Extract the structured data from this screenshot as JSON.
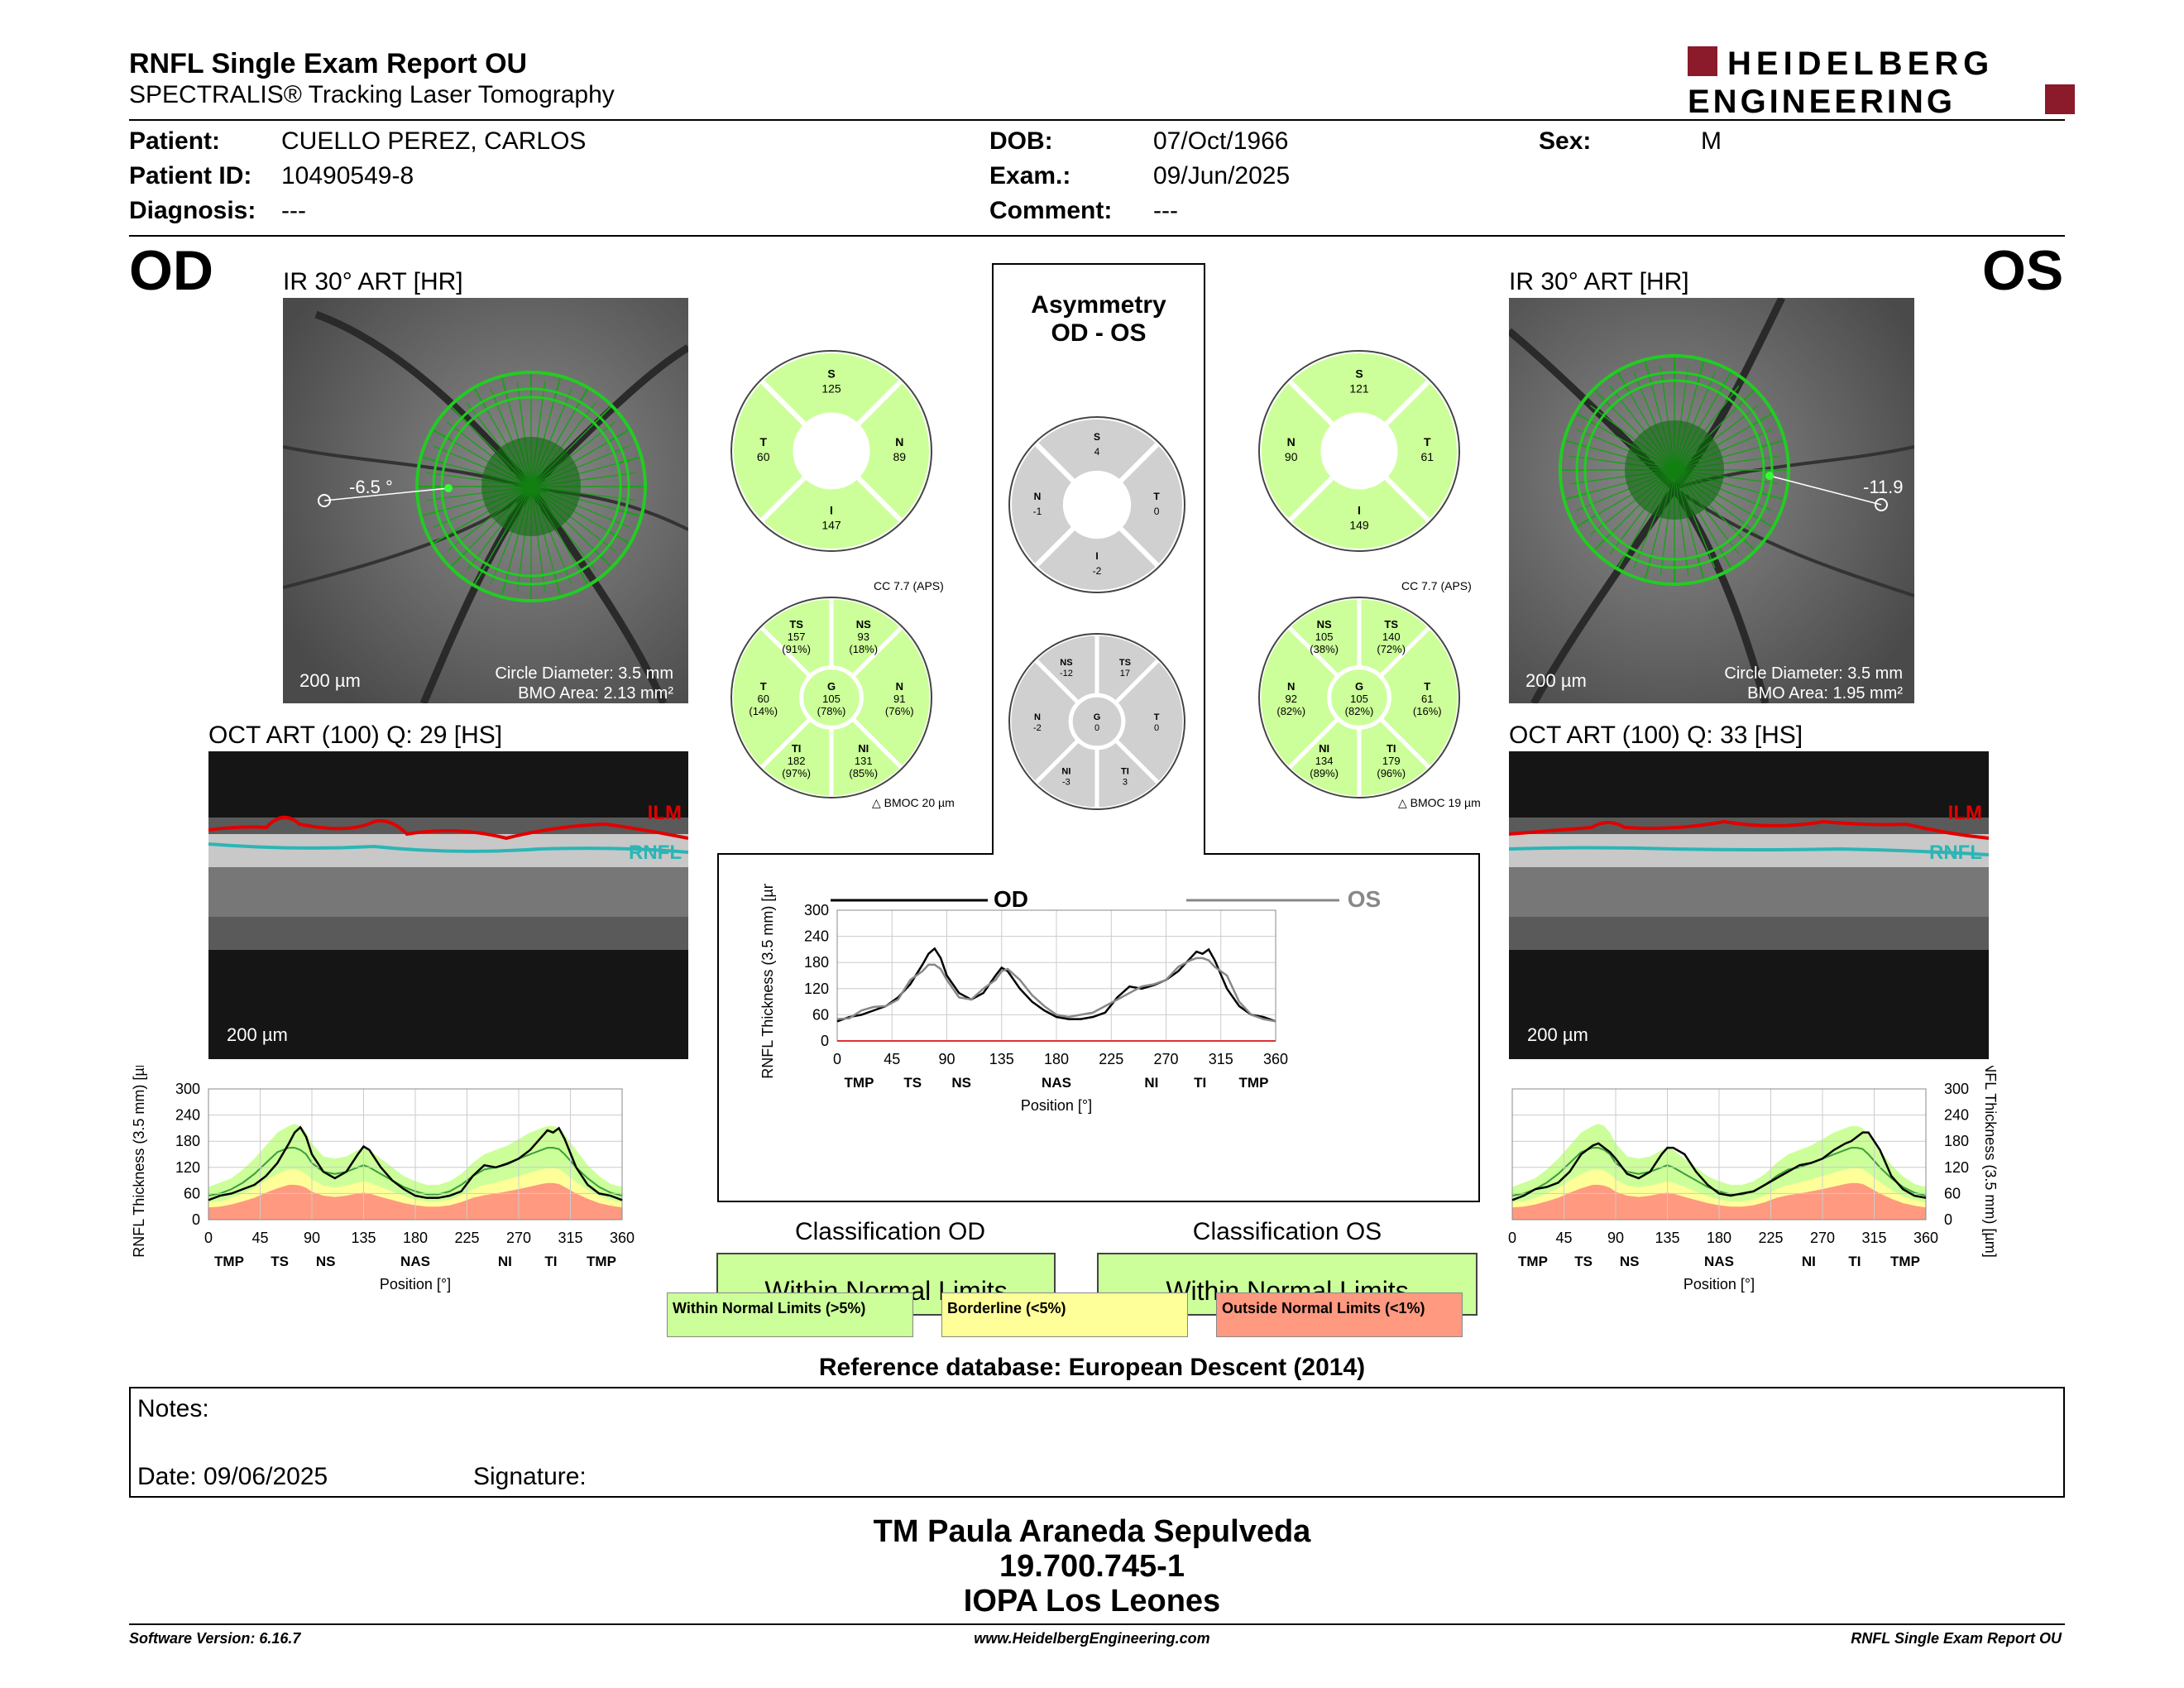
{
  "header": {
    "title": "RNFL Single Exam Report OU",
    "subtitle": "SPECTRALIS® Tracking Laser Tomography",
    "logo_line1": "HEIDELBERG",
    "logo_line2": "ENGINEERING"
  },
  "patient": {
    "patient_label": "Patient:",
    "patient_value": "CUELLO PEREZ, CARLOS",
    "id_label": "Patient ID:",
    "id_value": "10490549-8",
    "diag_label": "Diagnosis:",
    "diag_value": "---",
    "dob_label": "DOB:",
    "dob_value": "07/Oct/1966",
    "exam_label": "Exam.:",
    "exam_value": "09/Jun/2025",
    "comment_label": "Comment:",
    "comment_value": "---",
    "sex_label": "Sex:",
    "sex_value": "M"
  },
  "od": {
    "eye": "OD",
    "ir_label": "IR 30° ART [HR]",
    "angle": "-6.5 °",
    "scale": "200 µm",
    "circle_diameter": "Circle Diameter: 3.5 mm",
    "bmo_area": "BMO Area: 2.13 mm²",
    "oct_label": "OCT ART (100) Q: 29 [HS]",
    "oct_scale": "200 µm",
    "ilm": "ILM",
    "rnfl": "RNFL",
    "cc": "CC 7.7 (APS)",
    "bmoc": "BMOC 20 µm",
    "quad": {
      "S": "125",
      "T": "60",
      "N": "89",
      "I": "147"
    },
    "sect": {
      "TS": [
        "TS",
        "157",
        "(91%)"
      ],
      "NS": [
        "NS",
        "93",
        "(18%)"
      ],
      "T": [
        "T",
        "60",
        "(14%)"
      ],
      "G": [
        "G",
        "105",
        "(78%)"
      ],
      "N": [
        "N",
        "91",
        "(76%)"
      ],
      "TI": [
        "TI",
        "182",
        "(97%)"
      ],
      "NI": [
        "NI",
        "131",
        "(85%)"
      ]
    },
    "classification_title": "Classification OD",
    "classification": "Within Normal Limits"
  },
  "os": {
    "eye": "OS",
    "ir_label": "IR 30° ART [HR]",
    "angle": "-11.9",
    "scale": "200 µm",
    "circle_diameter": "Circle Diameter: 3.5 mm",
    "bmo_area": "BMO Area: 1.95 mm²",
    "oct_label": "OCT ART (100) Q: 33 [HS]",
    "oct_scale": "200 µm",
    "ilm": "ILM",
    "rnfl": "RNFL",
    "cc": "CC 7.7 (APS)",
    "bmoc": "BMOC 19 µm",
    "quad": {
      "S": "121",
      "T": "61",
      "N": "90",
      "I": "149"
    },
    "sect": {
      "NS": [
        "NS",
        "105",
        "(38%)"
      ],
      "TS": [
        "TS",
        "140",
        "(72%)"
      ],
      "N": [
        "N",
        "92",
        "(82%)"
      ],
      "G": [
        "G",
        "105",
        "(82%)"
      ],
      "T": [
        "T",
        "61",
        "(16%)"
      ],
      "NI": [
        "NI",
        "134",
        "(89%)"
      ],
      "TI": [
        "TI",
        "179",
        "(96%)"
      ]
    },
    "classification_title": "Classification OS",
    "classification": "Within Normal Limits"
  },
  "asymmetry": {
    "title1": "Asymmetry",
    "title2": "OD - OS",
    "quad": {
      "S": "4",
      "N": "-1",
      "T": "0",
      "I": "-2"
    },
    "sect": {
      "NS": [
        "NS",
        "-12"
      ],
      "TS": [
        "TS",
        "17"
      ],
      "N": [
        "N",
        "-2"
      ],
      "G": [
        "G",
        "0"
      ],
      "T": [
        "T",
        "0"
      ],
      "NI": [
        "NI",
        "-3"
      ],
      "TI": [
        "TI",
        "3"
      ]
    },
    "legend_od": "OD",
    "legend_os": "OS"
  },
  "legend": {
    "wnl": "Within Normal Limits (>5%)",
    "bl": "Borderline (<5%)",
    "onl": "Outside Normal Limits (<1%)"
  },
  "colors": {
    "wnl": "#ccff99",
    "bl": "#ffff99",
    "onl": "#ff9980",
    "ilm": "#e00000",
    "rnfl": "#2cb5b5"
  },
  "reference": "Reference database: European Descent (2014)",
  "notes": {
    "label": "Notes:",
    "date": "Date: 09/06/2025",
    "signature": "Signature:"
  },
  "signer": {
    "name": "TM Paula Araneda Sepulveda",
    "id": "19.700.745-1",
    "clinic": "IOPA Los Leones"
  },
  "footer": {
    "version": "Software Version: 6.16.7",
    "url": "www.HeidelbergEngineering.com",
    "report": "RNFL Single Exam Report OU"
  },
  "chart_data": [
    {
      "type": "line",
      "name": "od",
      "xlabel": "Position [°]",
      "ylabel": "RNFL Thickness (3.5 mm) [µm]",
      "xlim": [
        0,
        360
      ],
      "ylim": [
        0,
        300
      ],
      "xticks": [
        "0",
        "45",
        "90",
        "135",
        "180",
        "225",
        "270",
        "315",
        "360"
      ],
      "yticks": [
        "0",
        "60",
        "120",
        "180",
        "240",
        "300"
      ],
      "regions": [
        [
          "TMP",
          18
        ],
        [
          "TS",
          62
        ],
        [
          "NS",
          102
        ],
        [
          "NAS",
          180
        ],
        [
          "NI",
          258
        ],
        [
          "TI",
          298
        ],
        [
          "TMP",
          342
        ]
      ],
      "x": [
        0,
        10,
        20,
        30,
        40,
        50,
        60,
        70,
        75,
        80,
        85,
        90,
        100,
        110,
        120,
        130,
        135,
        140,
        150,
        160,
        170,
        180,
        190,
        200,
        210,
        220,
        230,
        240,
        250,
        260,
        270,
        280,
        290,
        295,
        300,
        305,
        310,
        320,
        330,
        340,
        350,
        360
      ],
      "values": [
        45,
        55,
        60,
        70,
        80,
        100,
        130,
        175,
        200,
        212,
        190,
        150,
        110,
        95,
        110,
        150,
        168,
        160,
        120,
        90,
        70,
        55,
        50,
        50,
        55,
        65,
        100,
        125,
        120,
        128,
        140,
        160,
        190,
        205,
        200,
        210,
        185,
        120,
        80,
        60,
        55,
        45
      ],
      "normal_mean": [
        55,
        60,
        70,
        85,
        105,
        130,
        155,
        165,
        165,
        160,
        150,
        130,
        110,
        105,
        110,
        120,
        125,
        120,
        105,
        90,
        75,
        65,
        58,
        58,
        65,
        80,
        100,
        115,
        120,
        130,
        140,
        150,
        160,
        165,
        165,
        162,
        150,
        120,
        95,
        75,
        62,
        55
      ],
      "normal_upper": [
        75,
        85,
        95,
        115,
        140,
        170,
        200,
        215,
        220,
        215,
        200,
        175,
        145,
        140,
        145,
        160,
        165,
        160,
        140,
        120,
        100,
        88,
        80,
        80,
        88,
        105,
        130,
        150,
        160,
        170,
        185,
        200,
        210,
        215,
        215,
        210,
        195,
        160,
        125,
        100,
        82,
        75
      ],
      "normal_border": [
        40,
        42,
        50,
        60,
        72,
        90,
        105,
        115,
        115,
        112,
        105,
        92,
        78,
        74,
        78,
        85,
        88,
        85,
        75,
        64,
        54,
        46,
        42,
        42,
        46,
        56,
        70,
        80,
        85,
        92,
        100,
        108,
        115,
        118,
        118,
        116,
        107,
        86,
        68,
        54,
        45,
        40
      ],
      "normal_lower": [
        28,
        30,
        35,
        42,
        50,
        62,
        72,
        80,
        80,
        78,
        73,
        64,
        55,
        52,
        55,
        60,
        62,
        60,
        52,
        45,
        38,
        33,
        30,
        30,
        33,
        40,
        50,
        56,
        60,
        65,
        70,
        76,
        82,
        84,
        84,
        82,
        75,
        60,
        48,
        38,
        32,
        28
      ]
    },
    {
      "type": "line",
      "name": "os",
      "xlabel": "Position [°]",
      "ylabel": "RNFL Thickness (3.5 mm) [µm]",
      "xlim": [
        0,
        360
      ],
      "ylim": [
        0,
        300
      ],
      "xticks": [
        "0",
        "45",
        "90",
        "135",
        "180",
        "225",
        "270",
        "315",
        "360"
      ],
      "yticks": [
        "0",
        "60",
        "120",
        "180",
        "240",
        "300"
      ],
      "regions": [
        [
          "TMP",
          18
        ],
        [
          "TS",
          62
        ],
        [
          "NS",
          102
        ],
        [
          "NAS",
          180
        ],
        [
          "NI",
          258
        ],
        [
          "TI",
          298
        ],
        [
          "TMP",
          342
        ]
      ],
      "x": [
        0,
        10,
        20,
        30,
        40,
        50,
        60,
        70,
        75,
        80,
        85,
        90,
        100,
        110,
        120,
        130,
        135,
        140,
        150,
        160,
        170,
        180,
        190,
        200,
        210,
        220,
        230,
        240,
        250,
        260,
        270,
        280,
        290,
        295,
        300,
        305,
        310,
        320,
        330,
        340,
        350,
        360
      ],
      "values": [
        45,
        55,
        70,
        75,
        85,
        110,
        150,
        170,
        175,
        165,
        155,
        140,
        105,
        95,
        110,
        150,
        165,
        165,
        150,
        110,
        80,
        60,
        55,
        60,
        65,
        80,
        95,
        110,
        125,
        130,
        140,
        160,
        175,
        180,
        190,
        200,
        200,
        160,
        100,
        70,
        55,
        50
      ],
      "normal_mean": [
        55,
        60,
        70,
        85,
        105,
        130,
        155,
        165,
        165,
        160,
        150,
        130,
        110,
        105,
        110,
        120,
        125,
        120,
        105,
        90,
        75,
        65,
        58,
        58,
        65,
        80,
        100,
        115,
        120,
        130,
        140,
        150,
        160,
        165,
        165,
        162,
        150,
        120,
        95,
        75,
        62,
        55
      ],
      "normal_upper": [
        75,
        85,
        95,
        115,
        140,
        170,
        200,
        215,
        220,
        215,
        200,
        175,
        145,
        140,
        145,
        160,
        165,
        160,
        140,
        120,
        100,
        88,
        80,
        80,
        88,
        105,
        130,
        150,
        160,
        170,
        185,
        200,
        210,
        215,
        215,
        210,
        195,
        160,
        125,
        100,
        82,
        75
      ],
      "normal_border": [
        40,
        42,
        50,
        60,
        72,
        90,
        105,
        115,
        115,
        112,
        105,
        92,
        78,
        74,
        78,
        85,
        88,
        85,
        75,
        64,
        54,
        46,
        42,
        42,
        46,
        56,
        70,
        80,
        85,
        92,
        100,
        108,
        115,
        118,
        118,
        116,
        107,
        86,
        68,
        54,
        45,
        40
      ],
      "normal_lower": [
        28,
        30,
        35,
        42,
        50,
        62,
        72,
        80,
        80,
        78,
        73,
        64,
        55,
        52,
        55,
        60,
        62,
        60,
        52,
        45,
        38,
        33,
        30,
        30,
        33,
        40,
        50,
        56,
        60,
        65,
        70,
        76,
        82,
        84,
        84,
        82,
        75,
        60,
        48,
        38,
        32,
        28
      ]
    },
    {
      "type": "line",
      "name": "asymmetry",
      "xlabel": "Position [°]",
      "ylabel": "RNFL Thickness (3.5 mm) [µm]",
      "xlim": [
        0,
        360
      ],
      "ylim": [
        0,
        300
      ],
      "xticks": [
        "0",
        "45",
        "90",
        "135",
        "180",
        "225",
        "270",
        "315",
        "360"
      ],
      "yticks": [
        "0",
        "60",
        "120",
        "180",
        "240",
        "300"
      ],
      "regions": [
        [
          "TMP",
          18
        ],
        [
          "TS",
          62
        ],
        [
          "NS",
          102
        ],
        [
          "NAS",
          180
        ],
        [
          "NI",
          258
        ],
        [
          "TI",
          298
        ],
        [
          "TMP",
          342
        ]
      ],
      "x": [
        0,
        10,
        20,
        30,
        40,
        50,
        60,
        70,
        75,
        80,
        85,
        90,
        100,
        110,
        120,
        130,
        135,
        140,
        150,
        160,
        170,
        180,
        190,
        200,
        210,
        220,
        230,
        240,
        250,
        260,
        270,
        280,
        290,
        295,
        300,
        305,
        310,
        320,
        330,
        340,
        350,
        360
      ],
      "series": [
        {
          "name": "OD",
          "values": [
            45,
            55,
            60,
            70,
            80,
            100,
            130,
            175,
            200,
            212,
            190,
            150,
            110,
            95,
            110,
            150,
            168,
            160,
            120,
            90,
            70,
            55,
            50,
            50,
            55,
            65,
            100,
            125,
            120,
            128,
            140,
            160,
            190,
            205,
            200,
            210,
            185,
            120,
            80,
            60,
            55,
            45
          ]
        },
        {
          "name": "OS",
          "values": [
            50,
            52,
            70,
            78,
            80,
            95,
            140,
            160,
            175,
            175,
            165,
            140,
            100,
            95,
            120,
            140,
            160,
            165,
            140,
            105,
            80,
            60,
            55,
            60,
            65,
            80,
            95,
            110,
            125,
            130,
            140,
            170,
            185,
            190,
            190,
            185,
            170,
            150,
            90,
            60,
            50,
            45
          ]
        }
      ]
    }
  ]
}
